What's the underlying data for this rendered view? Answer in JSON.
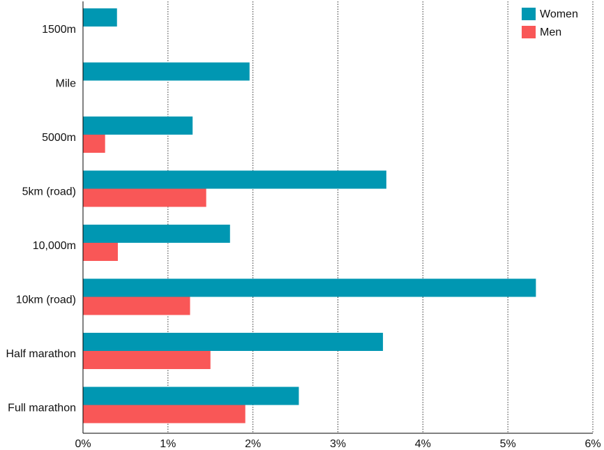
{
  "chart_data": {
    "type": "bar",
    "orientation": "horizontal",
    "title": "",
    "xlabel": "",
    "ylabel": "",
    "xlim": [
      0,
      6
    ],
    "xticks": [
      {
        "value": 0,
        "label": "0%"
      },
      {
        "value": 1,
        "label": "1%"
      },
      {
        "value": 2,
        "label": "2%"
      },
      {
        "value": 3,
        "label": "3%"
      },
      {
        "value": 4,
        "label": "4%"
      },
      {
        "value": 5,
        "label": "5%"
      },
      {
        "value": 6,
        "label": "6%"
      }
    ],
    "grid": "vertical-dotted",
    "legend": "top-right",
    "categories": [
      "1500m",
      "Mile",
      "5000m",
      "5km (road)",
      "10,000m",
      "10km (road)",
      "Half marathon",
      "Full marathon"
    ],
    "series": [
      {
        "name": "Women",
        "color": "#0097b2",
        "values": [
          0.4,
          1.96,
          1.29,
          3.57,
          1.73,
          5.33,
          3.53,
          2.54
        ]
      },
      {
        "name": "Men",
        "color": "#f95757",
        "values": [
          null,
          null,
          0.26,
          1.45,
          0.41,
          1.26,
          1.5,
          1.91
        ]
      }
    ]
  }
}
